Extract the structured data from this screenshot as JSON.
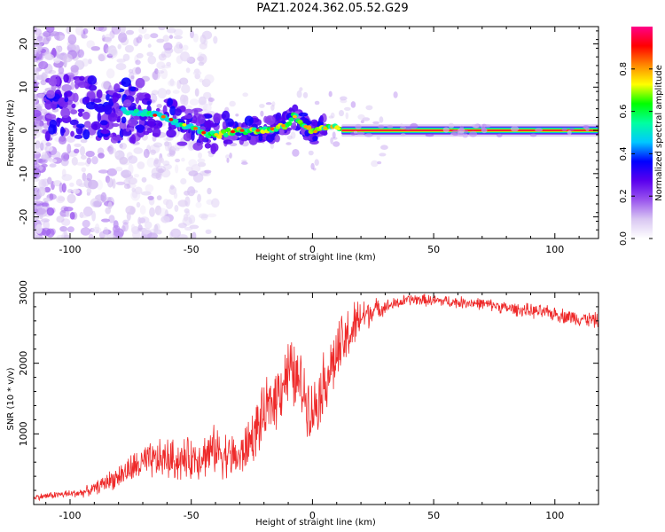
{
  "figure_title": "PAZ1.2024.362.05.52.G29",
  "chart_data": [
    {
      "type": "heatmap",
      "title": "PAZ1.2024.362.05.52.G29",
      "xlabel": "Height of straight line (km)",
      "ylabel": "Frequency (Hz)",
      "xlim": [
        -115,
        118
      ],
      "ylim": [
        -25,
        24
      ],
      "xticks": [
        -100,
        -50,
        0,
        50,
        100
      ],
      "yticks": [
        -20,
        -10,
        0,
        10,
        20
      ],
      "grid": false,
      "ridge": {
        "x": [
          -100,
          -90,
          -80,
          -75,
          -70,
          -65,
          -60,
          -55,
          -50,
          -45,
          -40,
          -35,
          -30,
          -25,
          -20,
          -15,
          -10,
          -8,
          -5,
          -2,
          0,
          5,
          10,
          15,
          20,
          40,
          60,
          80,
          100,
          118
        ],
        "y": [
          5.5,
          5,
          4.5,
          4.5,
          4,
          3.5,
          3,
          1.5,
          1,
          -0.5,
          -1,
          -0.5,
          0,
          0,
          0,
          0.5,
          1.5,
          3.5,
          2,
          0.5,
          -0.5,
          0.5,
          0.5,
          0,
          0,
          0,
          0,
          0,
          0,
          0
        ]
      },
      "colorbar": {
        "label": "Normalized spectral amplitude",
        "range": [
          0,
          1
        ],
        "ticks": [
          0.0,
          0.2,
          0.4,
          0.6,
          0.8
        ],
        "tick_labels": [
          "0.0",
          "0.2",
          "0.4",
          "0.6",
          "0.8"
        ],
        "colormap": [
          "#ffffff",
          "#d9c7f2",
          "#9a55ee",
          "#5a00ee",
          "#0000ff",
          "#00c8ff",
          "#00ffa0",
          "#00ff00",
          "#ffff00",
          "#ff8800",
          "#ff0000",
          "#ff0088"
        ]
      }
    },
    {
      "type": "line",
      "xlabel": "Height of straight line (km)",
      "ylabel": "SNR (10 * v/v)",
      "xlim": [
        -115,
        118
      ],
      "ylim": [
        0,
        3000
      ],
      "xticks": [
        -100,
        -50,
        0,
        50,
        100
      ],
      "yticks": [
        1000,
        2000,
        3000
      ],
      "grid": false,
      "series": [
        {
          "color": "#ee2a2a",
          "x": [
            -115,
            -110,
            -105,
            -100,
            -95,
            -90,
            -85,
            -80,
            -75,
            -70,
            -65,
            -60,
            -55,
            -50,
            -45,
            -40,
            -35,
            -30,
            -25,
            -20,
            -15,
            -10,
            -5,
            0,
            5,
            10,
            15,
            20,
            25,
            30,
            35,
            40,
            45,
            50,
            55,
            60,
            65,
            70,
            75,
            80,
            85,
            90,
            95,
            100,
            105,
            110,
            118
          ],
          "y": [
            100,
            120,
            140,
            150,
            170,
            220,
            320,
            400,
            500,
            580,
            620,
            650,
            620,
            650,
            700,
            780,
            700,
            650,
            950,
            1250,
            1550,
            1900,
            1700,
            1300,
            1750,
            2100,
            2400,
            2650,
            2750,
            2800,
            2850,
            2900,
            2900,
            2880,
            2880,
            2860,
            2860,
            2840,
            2820,
            2780,
            2760,
            2740,
            2720,
            2700,
            2660,
            2640,
            2600
          ],
          "amplitude": [
            50,
            60,
            60,
            70,
            80,
            100,
            150,
            200,
            250,
            300,
            320,
            350,
            350,
            350,
            380,
            400,
            400,
            380,
            450,
            500,
            550,
            600,
            550,
            500,
            550,
            550,
            500,
            350,
            200,
            120,
            100,
            100,
            100,
            100,
            100,
            100,
            100,
            100,
            100,
            110,
            110,
            120,
            120,
            120,
            130,
            130,
            130
          ]
        }
      ]
    }
  ]
}
